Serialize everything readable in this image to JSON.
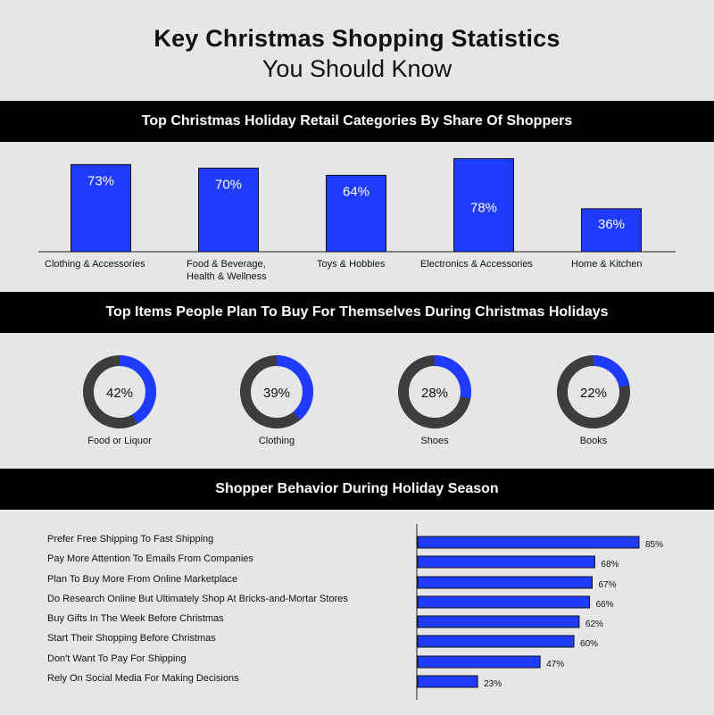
{
  "header": {
    "title_line1": "Key Christmas Shopping Statistics",
    "title_line2": "You Should Know"
  },
  "sections": {
    "categories_title": "Top Christmas Holiday Retail Categories By Share Of Shoppers",
    "items_title": "Top Items People Plan To Buy For Themselves During Christmas Holidays",
    "behavior_title": "Shopper Behavior During Holiday Season"
  },
  "colors": {
    "accent": "#1f3bff",
    "donut_track": "#3d3d3d",
    "band": "#000000",
    "background": "#e6e6e6"
  },
  "chart_data": [
    {
      "type": "bar",
      "categories": [
        "Clothing & Accessories",
        "Food & Beverage,\nHealth & Wellness",
        "Toys & Hobbies",
        "Electronics & Accessories",
        "Home & Kitchen"
      ],
      "values": [
        73,
        70,
        64,
        78,
        36
      ],
      "value_labels": [
        "73%",
        "70%",
        "64%",
        "78%",
        "36%"
      ]
    },
    {
      "type": "pie",
      "categories": [
        "Food or Liquor",
        "Clothing",
        "Shoes",
        "Books"
      ],
      "values": [
        42,
        39,
        28,
        22
      ],
      "value_labels": [
        "42%",
        "39%",
        "28%",
        "22%"
      ]
    },
    {
      "type": "bar",
      "orientation": "horizontal",
      "categories": [
        "Prefer Free Shipping To Fast Shipping",
        "Pay More Attention To Emails From Companies",
        "Plan To Buy More From Online Marketplace",
        "Do Research Online But Ultimately Shop At Bricks-and-Mortar Stores",
        "Buy Gifts In The Week Before Christmas",
        "Start Their Shopping Before Christmas",
        "Don't Want To Pay For Shipping",
        "Rely On Social Media For Making Decisions"
      ],
      "values": [
        85,
        68,
        67,
        66,
        62,
        60,
        47,
        23
      ],
      "value_labels": [
        "85%",
        "68%",
        "67%",
        "66%",
        "62%",
        "60%",
        "47%",
        "23%"
      ]
    }
  ]
}
